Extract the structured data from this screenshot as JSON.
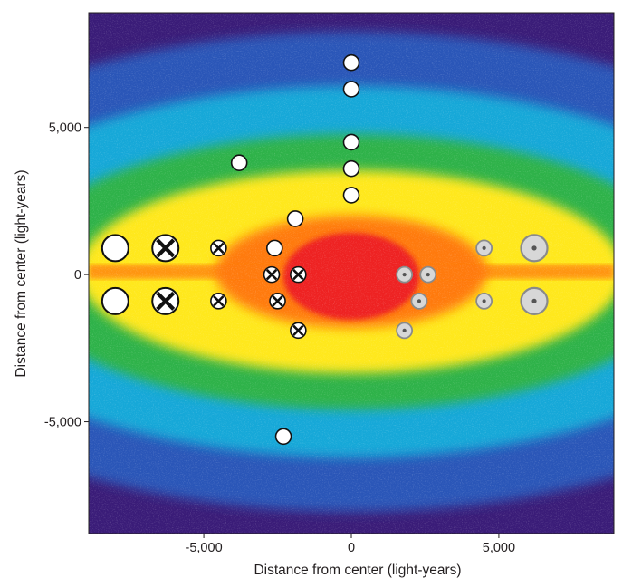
{
  "chart_data": {
    "type": "scatter",
    "title": "",
    "xlabel": "Distance from center (light-years)",
    "ylabel": "Distance from center (light-years)",
    "xlim": [
      -8900,
      8900
    ],
    "ylim": [
      -8800,
      8900
    ],
    "x_ticks": [
      {
        "value": -5000,
        "label": "-5,000"
      },
      {
        "value": 0,
        "label": "0"
      },
      {
        "value": 5000,
        "label": "5,000"
      }
    ],
    "y_ticks": [
      {
        "value": 5000,
        "label": "5,000"
      },
      {
        "value": 0,
        "label": "0"
      },
      {
        "value": -5000,
        "label": "-5,000"
      }
    ],
    "grid": false,
    "background": "Colour-coded star density map of the galactic bulge (red = densest, through yellow, green, blue to purple = sparsest)",
    "colors": {
      "core": "#ee2222",
      "inner": "#ff7a10",
      "yellow": "#ffe81a",
      "green": "#2fb24a",
      "cyan": "#18a8d8",
      "blue": "#2a56b8",
      "purple": "#3a1c78",
      "marker_white": "#ffffff",
      "marker_gray": "#d7d7d7",
      "marker_gray_stroke": "#8a8a8a"
    },
    "series": [
      {
        "name": "open-circle",
        "marker": "white-circle",
        "points": [
          {
            "x": 0,
            "y": 7200,
            "size": "small"
          },
          {
            "x": 0,
            "y": 6300,
            "size": "small"
          },
          {
            "x": 0,
            "y": 4500,
            "size": "small"
          },
          {
            "x": 0,
            "y": 3600,
            "size": "small"
          },
          {
            "x": 0,
            "y": 2700,
            "size": "small"
          },
          {
            "x": -3800,
            "y": 3800,
            "size": "small"
          },
          {
            "x": -1900,
            "y": 1900,
            "size": "small"
          },
          {
            "x": -2600,
            "y": 900,
            "size": "small"
          },
          {
            "x": -8000,
            "y": 900,
            "size": "large"
          },
          {
            "x": -8000,
            "y": -900,
            "size": "large"
          },
          {
            "x": -2300,
            "y": -5500,
            "size": "small"
          }
        ]
      },
      {
        "name": "crossed-circle",
        "marker": "x-circle",
        "points": [
          {
            "x": -6300,
            "y": 900,
            "size": "large"
          },
          {
            "x": -6300,
            "y": -900,
            "size": "large"
          },
          {
            "x": -4500,
            "y": 900,
            "size": "small"
          },
          {
            "x": -4500,
            "y": -900,
            "size": "small"
          },
          {
            "x": -2700,
            "y": 0,
            "size": "small"
          },
          {
            "x": -1800,
            "y": 0,
            "size": "small"
          },
          {
            "x": -2500,
            "y": -900,
            "size": "small"
          },
          {
            "x": -1800,
            "y": -1900,
            "size": "small"
          }
        ]
      },
      {
        "name": "dotted-circle",
        "marker": "gray-dot-circle",
        "points": [
          {
            "x": 1800,
            "y": 0,
            "size": "small"
          },
          {
            "x": 2600,
            "y": 0,
            "size": "small"
          },
          {
            "x": 2300,
            "y": -900,
            "size": "small"
          },
          {
            "x": 1800,
            "y": -1900,
            "size": "small"
          },
          {
            "x": 4500,
            "y": 900,
            "size": "small"
          },
          {
            "x": 4500,
            "y": -900,
            "size": "small"
          },
          {
            "x": 6200,
            "y": 900,
            "size": "large"
          },
          {
            "x": 6200,
            "y": -900,
            "size": "large"
          }
        ]
      }
    ]
  }
}
